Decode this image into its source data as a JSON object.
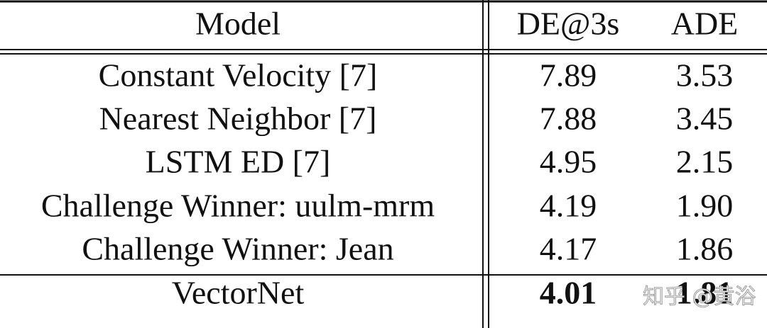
{
  "table": {
    "header": [
      "Model",
      "DE@3s",
      "ADE"
    ],
    "rows": [
      [
        "Constant Velocity [7]",
        "7.89",
        "3.53"
      ],
      [
        "Nearest Neighbor [7]",
        "7.88",
        "3.45"
      ],
      [
        "LSTM ED [7]",
        "4.95",
        "2.15"
      ],
      [
        "Challenge Winner: uulm-mrm",
        "4.19",
        "1.90"
      ],
      [
        "Challenge Winner: Jean",
        "4.17",
        "1.86"
      ],
      [
        "VectorNet",
        "4.01",
        "1.81"
      ]
    ]
  },
  "watermark": "知乎 @黄浴"
}
